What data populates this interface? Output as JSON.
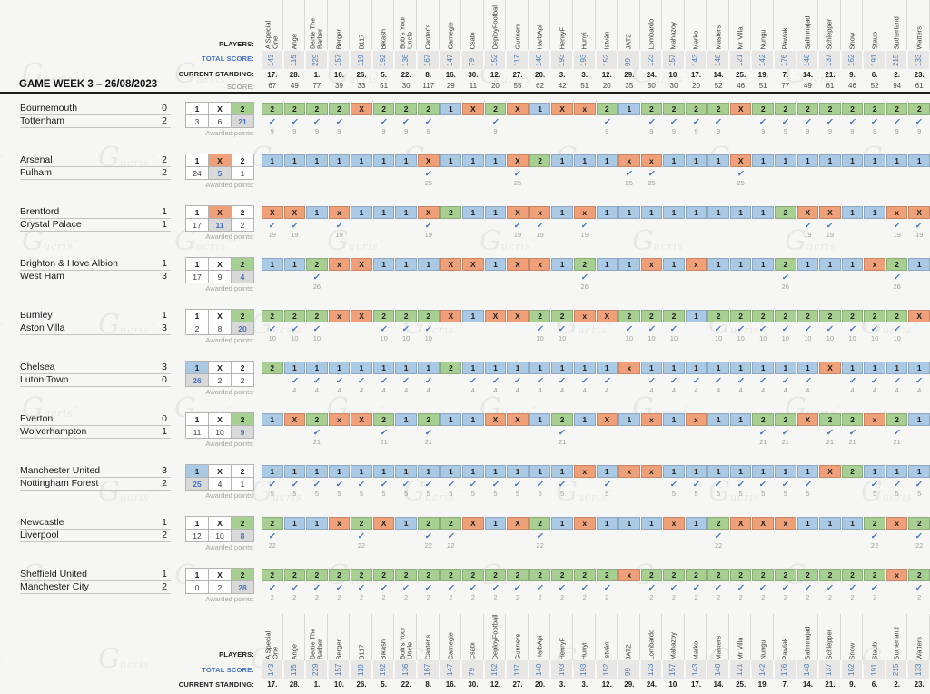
{
  "page": {
    "title": "GAME WEEK 3 – 26/08/2023"
  },
  "labels": {
    "players": "PLAYERS:",
    "total_score": "TOTAL SCORE:",
    "current_standing": "CURRENT STANDING:",
    "score": "SCORE:",
    "awarded_points": "Awarded points:"
  },
  "watermark": {
    "glyph": "G",
    "text": "ucris",
    "tm": "™"
  },
  "check_glyph": "✓",
  "outcomes": [
    "1",
    "X",
    "2"
  ],
  "colors": {
    "1": "#a9c9e5",
    "X": "#f0a078",
    "2": "#a7cf92",
    "win_count_bg": "#d9d9d9",
    "win_count_text": "#4472c4"
  },
  "players": [
    {
      "name": "A Special One",
      "total": 143,
      "standing": "17.",
      "score": 67
    },
    {
      "name": "Ange",
      "total": 115,
      "standing": "28.",
      "score": 49
    },
    {
      "name": "Bertie The Barber",
      "total": 229,
      "standing": "1.",
      "score": 77
    },
    {
      "name": "Berger",
      "total": 157,
      "standing": "10.",
      "score": 39
    },
    {
      "name": "B117",
      "total": 119,
      "standing": "26.",
      "score": 33
    },
    {
      "name": "Bikash",
      "total": 192,
      "standing": "5.",
      "score": 51
    },
    {
      "name": "Bob's Your Uncle",
      "total": 136,
      "standing": "22.",
      "score": 30
    },
    {
      "name": "Canter's",
      "total": 167,
      "standing": "8.",
      "score": 117
    },
    {
      "name": "Carnegie",
      "total": 147,
      "standing": "16.",
      "score": 29
    },
    {
      "name": "Csabi",
      "total": 79,
      "standing": "30.",
      "score": 11
    },
    {
      "name": "DeployFootball",
      "total": 152,
      "standing": "12.",
      "score": 20
    },
    {
      "name": "Gunners",
      "total": 117,
      "standing": "27.",
      "score": 55
    },
    {
      "name": "HarbApi",
      "total": 140,
      "standing": "20.",
      "score": 62
    },
    {
      "name": "HenryF",
      "total": 193,
      "standing": "3.",
      "score": 42
    },
    {
      "name": "Hunyi",
      "total": 193,
      "standing": "3.",
      "score": 51
    },
    {
      "name": "István",
      "total": 152,
      "standing": "12.",
      "score": 20
    },
    {
      "name": "JATZ",
      "total": 99,
      "standing": "29.",
      "score": 35
    },
    {
      "name": "Lombardo",
      "total": 123,
      "standing": "24.",
      "score": 50
    },
    {
      "name": "Mahazoy",
      "total": 157,
      "standing": "10.",
      "score": 30
    },
    {
      "name": "Marko",
      "total": 143,
      "standing": "17.",
      "score": 20
    },
    {
      "name": "Masters",
      "total": 148,
      "standing": "14.",
      "score": 52
    },
    {
      "name": "Mr Villa",
      "total": 121,
      "standing": "25.",
      "score": 46
    },
    {
      "name": "Nungu",
      "total": 142,
      "standing": "19.",
      "score": 51
    },
    {
      "name": "Pawlak",
      "total": 176,
      "standing": "7.",
      "score": 77
    },
    {
      "name": "Salimnajad",
      "total": 148,
      "standing": "14.",
      "score": 49
    },
    {
      "name": "Schlepper",
      "total": 137,
      "standing": "21.",
      "score": 61
    },
    {
      "name": "Snow",
      "total": 162,
      "standing": "9.",
      "score": 46
    },
    {
      "name": "Staub",
      "total": 191,
      "standing": "6.",
      "score": 52
    },
    {
      "name": "Sutherland",
      "total": 215,
      "standing": "2.",
      "score": 94
    },
    {
      "name": "Watters",
      "total": 133,
      "standing": "23.",
      "score": 61
    }
  ],
  "matches": [
    {
      "home": "Bournemouth",
      "home_score": 0,
      "away": "Tottenham",
      "away_score": 2,
      "result": "2",
      "counts": [
        3,
        6,
        21
      ],
      "awarded_points": 9,
      "predictions": [
        "2",
        "2",
        "2",
        "2",
        "X",
        "2",
        "2",
        "2",
        "1",
        "X",
        "2",
        "X",
        "1",
        "X",
        "x",
        "2",
        "1",
        "2",
        "2",
        "2",
        "2",
        "X",
        "2",
        "2",
        "2",
        "2",
        "2",
        "2",
        "2",
        "2"
      ]
    },
    {
      "home": "Arsenal",
      "home_score": 2,
      "away": "Fulham",
      "away_score": 2,
      "result": "X",
      "counts": [
        24,
        5,
        1
      ],
      "awarded_points": 25,
      "predictions": [
        "1",
        "1",
        "1",
        "1",
        "1",
        "1",
        "1",
        "X",
        "1",
        "1",
        "1",
        "X",
        "2",
        "1",
        "1",
        "1",
        "x",
        "x",
        "1",
        "1",
        "1",
        "X",
        "1",
        "1",
        "1",
        "1",
        "1",
        "1",
        "1",
        "1"
      ]
    },
    {
      "home": "Brentford",
      "home_score": 1,
      "away": "Crystal Palace",
      "away_score": 1,
      "result": "X",
      "counts": [
        17,
        11,
        2
      ],
      "awarded_points": 19,
      "predictions": [
        "X",
        "X",
        "1",
        "x",
        "1",
        "1",
        "1",
        "X",
        "2",
        "1",
        "1",
        "X",
        "x",
        "1",
        "x",
        "1",
        "1",
        "1",
        "1",
        "1",
        "1",
        "1",
        "1",
        "2",
        "X",
        "X",
        "1",
        "1",
        "x",
        "X"
      ]
    },
    {
      "home": "Brighton & Hove Albion",
      "home_score": 1,
      "away": "West Ham",
      "away_score": 3,
      "result": "2",
      "counts": [
        17,
        9,
        4
      ],
      "awarded_points": 26,
      "predictions": [
        "1",
        "1",
        "2",
        "x",
        "X",
        "1",
        "1",
        "1",
        "X",
        "X",
        "1",
        "X",
        "x",
        "1",
        "2",
        "1",
        "1",
        "x",
        "1",
        "x",
        "1",
        "1",
        "1",
        "2",
        "1",
        "1",
        "1",
        "x",
        "2",
        "1"
      ]
    },
    {
      "home": "Burnley",
      "home_score": 1,
      "away": "Aston Villa",
      "away_score": 3,
      "result": "2",
      "counts": [
        2,
        8,
        20
      ],
      "awarded_points": 10,
      "predictions": [
        "2",
        "2",
        "2",
        "x",
        "X",
        "2",
        "2",
        "2",
        "X",
        "1",
        "X",
        "X",
        "2",
        "2",
        "x",
        "X",
        "2",
        "2",
        "2",
        "1",
        "2",
        "2",
        "2",
        "2",
        "2",
        "2",
        "2",
        "2",
        "2",
        "X"
      ]
    },
    {
      "home": "Chelsea",
      "home_score": 3,
      "away": "Luton Town",
      "away_score": 0,
      "result": "1",
      "counts": [
        26,
        2,
        2
      ],
      "awarded_points": 4,
      "predictions": [
        "2",
        "1",
        "1",
        "1",
        "1",
        "1",
        "1",
        "1",
        "2",
        "1",
        "1",
        "1",
        "1",
        "1",
        "1",
        "1",
        "x",
        "1",
        "1",
        "1",
        "1",
        "1",
        "1",
        "1",
        "1",
        "X",
        "1",
        "1",
        "1",
        "1"
      ]
    },
    {
      "home": "Everton",
      "home_score": 0,
      "away": "Wolverhampton",
      "away_score": 1,
      "result": "2",
      "counts": [
        11,
        10,
        9
      ],
      "awarded_points": 21,
      "predictions": [
        "1",
        "X",
        "2",
        "x",
        "X",
        "2",
        "1",
        "2",
        "1",
        "1",
        "X",
        "X",
        "1",
        "2",
        "1",
        "X",
        "1",
        "x",
        "1",
        "x",
        "1",
        "1",
        "2",
        "2",
        "X",
        "2",
        "2",
        "x",
        "2",
        "1"
      ]
    },
    {
      "home": "Manchester United",
      "home_score": 3,
      "away": "Nottingham Forest",
      "away_score": 2,
      "result": "1",
      "counts": [
        25,
        4,
        1
      ],
      "awarded_points": 5,
      "predictions": [
        "1",
        "1",
        "1",
        "1",
        "1",
        "1",
        "1",
        "1",
        "1",
        "1",
        "1",
        "1",
        "1",
        "1",
        "x",
        "1",
        "x",
        "x",
        "1",
        "1",
        "1",
        "1",
        "1",
        "1",
        "1",
        "X",
        "2",
        "1",
        "1",
        "1"
      ]
    },
    {
      "home": "Newcastle",
      "home_score": 1,
      "away": "Liverpool",
      "away_score": 2,
      "result": "2",
      "counts": [
        12,
        10,
        8
      ],
      "awarded_points": 22,
      "predictions": [
        "2",
        "1",
        "1",
        "x",
        "2",
        "X",
        "1",
        "2",
        "2",
        "X",
        "1",
        "X",
        "2",
        "1",
        "x",
        "1",
        "1",
        "1",
        "x",
        "1",
        "2",
        "X",
        "X",
        "x",
        "1",
        "1",
        "1",
        "2",
        "x",
        "2"
      ]
    },
    {
      "home": "Sheffield United",
      "home_score": 1,
      "away": "Manchester City",
      "away_score": 2,
      "result": "2",
      "counts": [
        0,
        2,
        28
      ],
      "awarded_points": 2,
      "predictions": [
        "2",
        "2",
        "2",
        "2",
        "2",
        "2",
        "2",
        "2",
        "2",
        "2",
        "2",
        "2",
        "2",
        "2",
        "2",
        "2",
        "x",
        "2",
        "2",
        "2",
        "2",
        "2",
        "2",
        "2",
        "2",
        "2",
        "2",
        "2",
        "x",
        "2"
      ]
    }
  ]
}
